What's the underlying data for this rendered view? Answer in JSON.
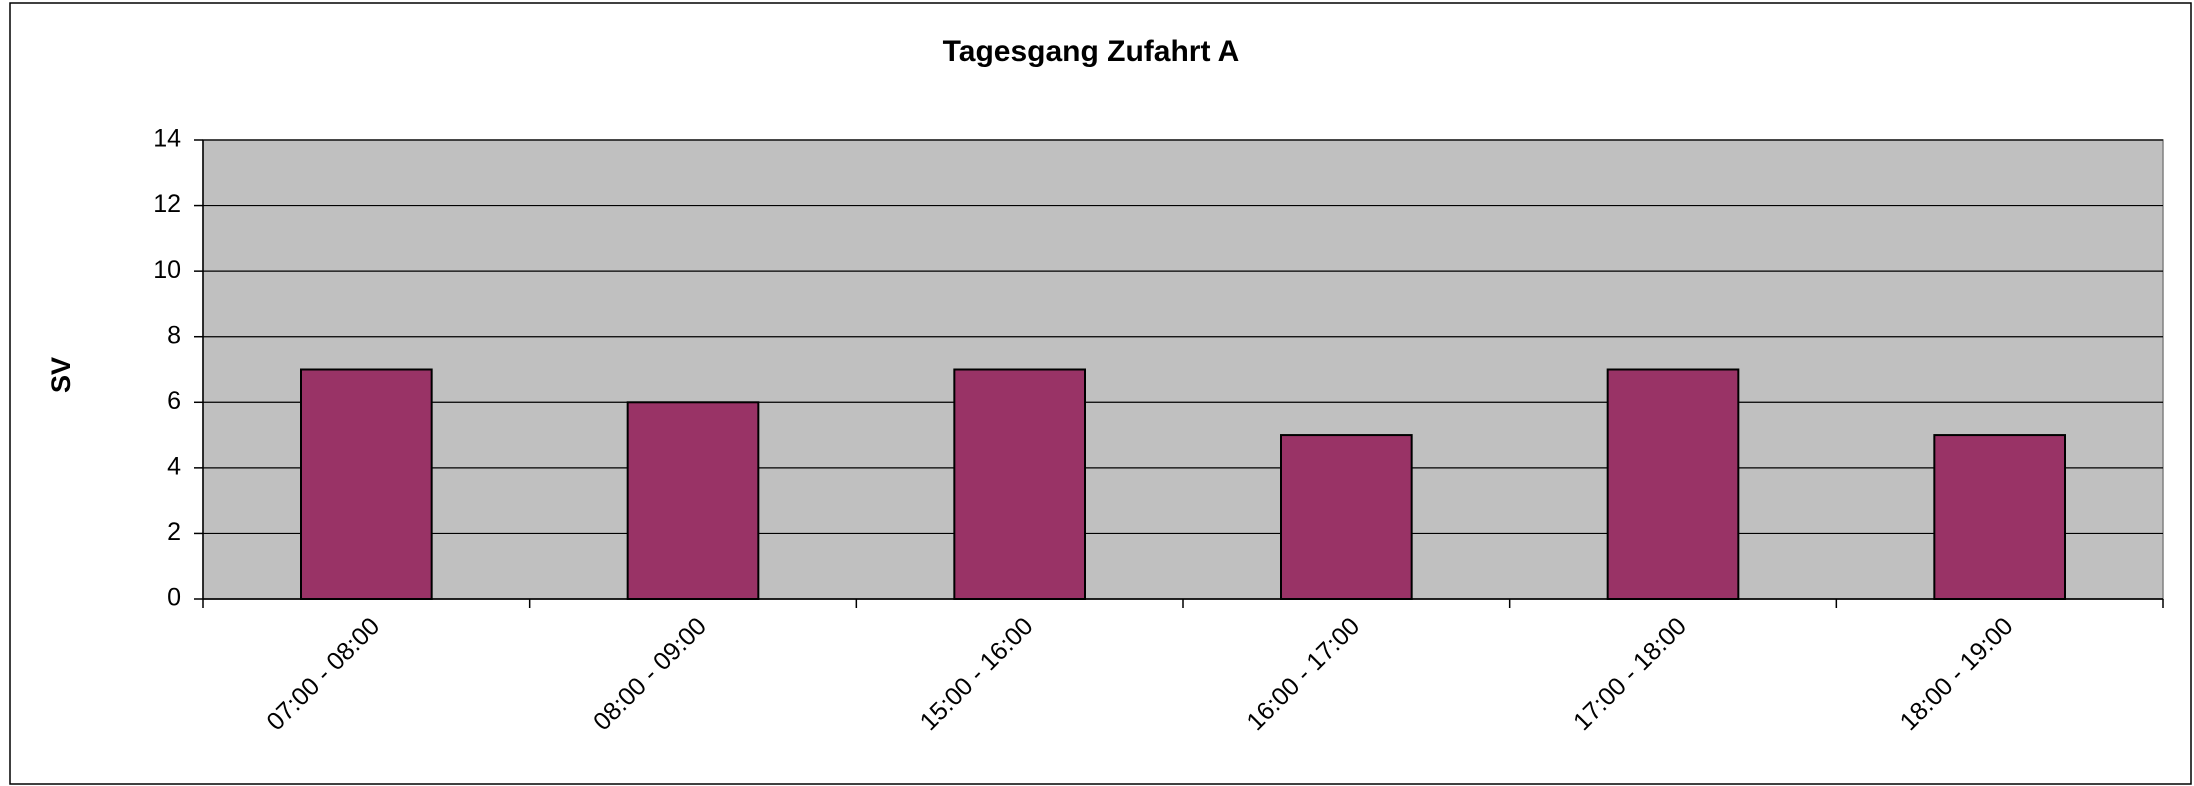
{
  "chart_data": {
    "type": "bar",
    "title": "Tagesgang Zufahrt A",
    "ylabel": "SV",
    "categories": [
      "07:00 - 08:00",
      "08:00 - 09:00",
      "15:00 - 16:00",
      "16:00 - 17:00",
      "17:00 - 18:00",
      "18:00 - 19:00"
    ],
    "values": [
      7,
      6,
      7,
      5,
      7,
      5
    ],
    "color": "#993366",
    "plot_background": "#c0c0c0",
    "ylim": [
      0,
      14
    ],
    "yticks": [
      0,
      2,
      4,
      6,
      8,
      10,
      12,
      14
    ],
    "grid": true
  }
}
